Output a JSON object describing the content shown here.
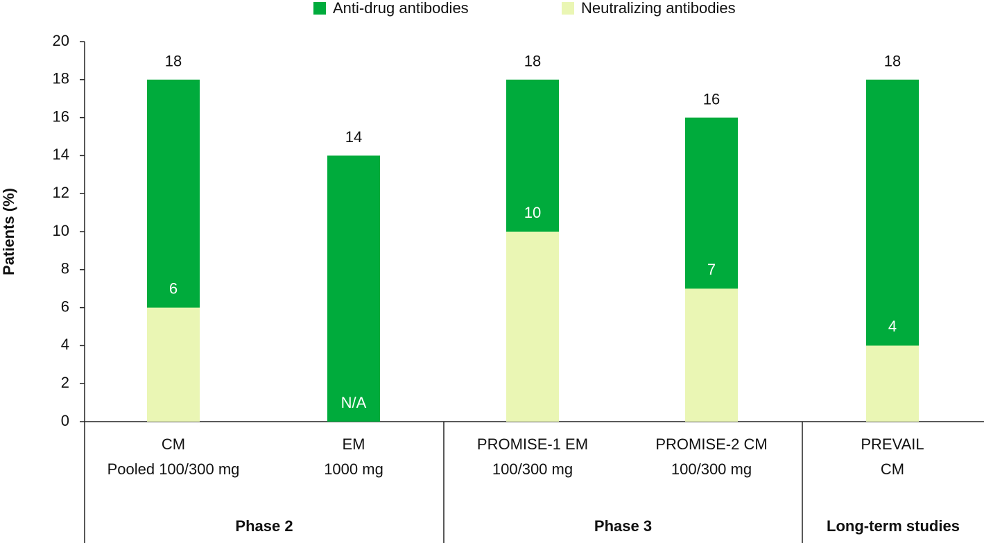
{
  "chart_data": {
    "type": "bar",
    "ylabel": "Patients (%)",
    "ylim": [
      0,
      20
    ],
    "yticks": [
      0,
      2,
      4,
      6,
      8,
      10,
      12,
      14,
      16,
      18,
      20
    ],
    "groups": [
      {
        "label": "Phase 2",
        "categories": [
          [
            "CM",
            "Pooled 100/300 mg"
          ],
          [
            "EM",
            "1000 mg"
          ]
        ]
      },
      {
        "label": "Phase 3",
        "categories": [
          [
            "PROMISE-1 EM",
            "100/300 mg"
          ],
          [
            "PROMISE-2 CM",
            "100/300 mg"
          ]
        ]
      },
      {
        "label": "Long-term studies",
        "categories": [
          [
            "PREVAIL",
            "CM"
          ]
        ]
      }
    ],
    "legend": "top",
    "series": [
      {
        "name": "Anti-drug antibodies",
        "color": "#00ab3c",
        "values": [
          18,
          14,
          18,
          16,
          18
        ]
      },
      {
        "name": "Neutralizing antibodies",
        "color": "#eaf6b4",
        "values": [
          6,
          null,
          10,
          7,
          4
        ],
        "value_labels": [
          "6",
          "N/A",
          "10",
          "7",
          "4"
        ]
      }
    ]
  }
}
